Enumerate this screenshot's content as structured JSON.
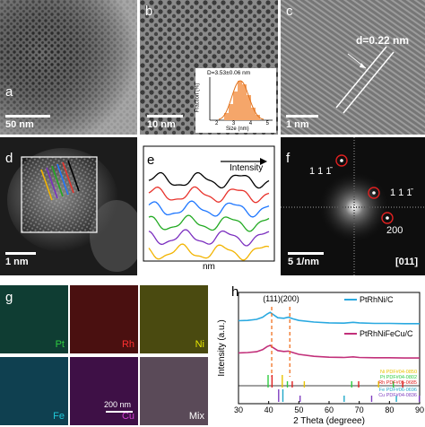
{
  "panels": {
    "a": {
      "letter": "a",
      "scale": "50 nm"
    },
    "b": {
      "letter": "b",
      "scale": "10 nm",
      "inset": {
        "label": "D=3.53±0.06 nm",
        "xlabel": "Size (nm)",
        "ylabel": "Fraction (%)",
        "xticks": [
          "2",
          "3",
          "4",
          "5"
        ]
      }
    },
    "c": {
      "letter": "c",
      "scale": "1 nm",
      "d_spacing": "d=0.22 nm"
    },
    "d": {
      "letter": "d",
      "scale": "1 nm"
    },
    "e": {
      "letter": "e",
      "xlabel": "nm",
      "arrow_label": "Intensity"
    },
    "f": {
      "letter": "f",
      "scale": "5 1/nm",
      "zone": "[011]",
      "spots": [
        "1 1 1̄",
        "1 1 1̄",
        "200"
      ]
    },
    "g": {
      "letter": "g",
      "scale": "200 nm",
      "maps": [
        {
          "element": "Pt",
          "label_color": "#2ecc40"
        },
        {
          "element": "Rh",
          "label_color": "#ff3030"
        },
        {
          "element": "Ni",
          "label_color": "#e8e800"
        },
        {
          "element": "Fe",
          "label_color": "#20c8d8"
        },
        {
          "element": "Cu",
          "label_color": "#d040d0"
        },
        {
          "element": "Mix",
          "label_color": "#ffffff"
        }
      ]
    },
    "h": {
      "letter": "h"
    }
  },
  "colors": {
    "line_scan": [
      "#000000",
      "#e8332c",
      "#1f77ff",
      "#22aa22",
      "#7b2fbf",
      "#f2b400"
    ],
    "pt": "#2ecc40",
    "rh": "#ff3030",
    "ni": "#e8e800",
    "fe": "#20c8d8",
    "cu": "#d040d0"
  },
  "chart_data": {
    "type": "line",
    "xlabel": "2 Theta (degreee)",
    "ylabel": "Intensity (a.u.)",
    "xlim": [
      30,
      90
    ],
    "xticks": [
      30,
      40,
      50,
      60,
      70,
      80,
      90
    ],
    "peak_labels": [
      {
        "text": "(111)",
        "x": 41
      },
      {
        "text": "(200)",
        "x": 47
      }
    ],
    "series": [
      {
        "name": "PtRhNi/C",
        "color": "#2aa9e0",
        "x": [
          30,
          33,
          36,
          38,
          39.5,
          40.5,
          41.5,
          43,
          45,
          46.5,
          48,
          50,
          55,
          60,
          65,
          68,
          70,
          75,
          80,
          85,
          90
        ],
        "y": [
          0.55,
          0.56,
          0.6,
          0.68,
          0.8,
          0.86,
          0.78,
          0.66,
          0.64,
          0.68,
          0.62,
          0.56,
          0.5,
          0.47,
          0.46,
          0.49,
          0.47,
          0.45,
          0.45,
          0.44,
          0.44
        ]
      },
      {
        "name": "PtRhNiFeCu/C",
        "color": "#c2307a",
        "x": [
          30,
          33,
          36,
          38,
          39.5,
          40.5,
          41.5,
          43,
          45,
          46.5,
          48,
          50,
          55,
          60,
          65,
          68,
          70,
          75,
          80,
          85,
          90
        ],
        "y": [
          0.52,
          0.53,
          0.56,
          0.63,
          0.74,
          0.78,
          0.7,
          0.6,
          0.57,
          0.58,
          0.53,
          0.47,
          0.4,
          0.37,
          0.36,
          0.38,
          0.36,
          0.35,
          0.35,
          0.34,
          0.34
        ]
      }
    ],
    "reference_patterns": [
      {
        "label": "Ni PDF#04-0850",
        "color": "#e8c400",
        "x": [
          44.5,
          51.8,
          76.4
        ]
      },
      {
        "label": "Pt PDF#04-0802",
        "color": "#2ecc40",
        "x": [
          39.8,
          46.2,
          67.5,
          81.3
        ]
      },
      {
        "label": "Rh PDF#05-0685",
        "color": "#e02020",
        "x": [
          41.1,
          47.8,
          69.8,
          84.4
        ]
      },
      {
        "label": "Fe PDF#06-0696",
        "color": "#20a8c8",
        "x": [
          44.7,
          65.0,
          82.3
        ]
      },
      {
        "label": "Cu PDF#04-0836",
        "color": "#8040c0",
        "x": [
          43.3,
          50.4,
          74.1,
          89.9
        ]
      }
    ]
  }
}
